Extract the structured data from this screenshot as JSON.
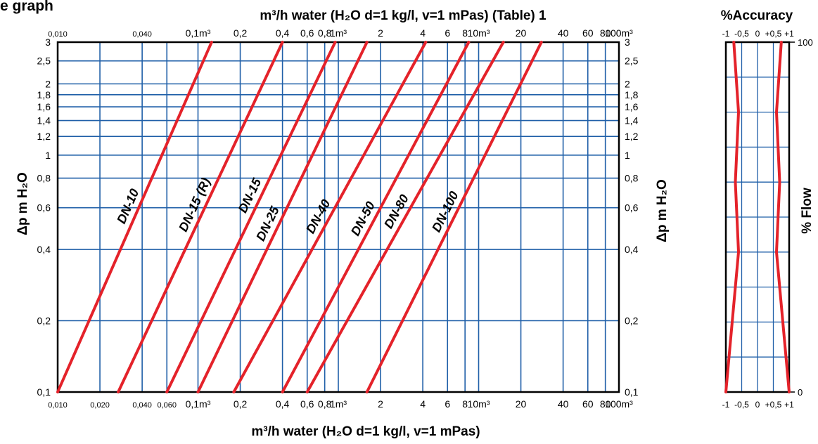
{
  "page_title_fragment": "e graph",
  "chart_data": [
    {
      "type": "line",
      "title": "m³/h water (H₂O  d=1  kg/l,  v=1 mPas) (Table) 1",
      "xlabel": "m³/h water (H₂O  d=1  kg/l,  v=1 mPas)",
      "ylabel": "Δp m H₂O",
      "x_scale": "log",
      "y_scale": "log",
      "xlim": [
        0.01,
        100
      ],
      "ylim": [
        0.1,
        3
      ],
      "grid": true,
      "x_ticks_top": [
        "0,010",
        "0,040",
        "0,1m³",
        "0,2",
        "0,4",
        "0,6",
        "0,8",
        "1m³",
        "2",
        "4",
        "6",
        "8",
        "10m³",
        "20",
        "40",
        "60",
        "80",
        "100m³"
      ],
      "x_ticks_bottom": [
        "0,010",
        "0,020",
        "0,040",
        "0,060",
        "0,1m³",
        "0,2",
        "0,4",
        "0,6",
        "0,8",
        "1m³",
        "2",
        "4",
        "6",
        "8",
        "10m³",
        "20",
        "40",
        "60",
        "80",
        "100m³"
      ],
      "y_ticks": [
        "0,1",
        "0,2",
        "0,4",
        "0,6",
        "0,8",
        "1",
        "1,2",
        "1,4",
        "1,6",
        "1,8",
        "2",
        "2,5",
        "3"
      ],
      "series": [
        {
          "name": "DN-10",
          "x": [
            0.01,
            0.125
          ],
          "y": [
            0.1,
            3
          ]
        },
        {
          "name": "DN-15 (R)",
          "x": [
            0.027,
            0.4
          ],
          "y": [
            0.1,
            3
          ]
        },
        {
          "name": "DN-15",
          "x": [
            0.06,
            0.95
          ],
          "y": [
            0.1,
            3
          ]
        },
        {
          "name": "DN-25",
          "x": [
            0.1,
            1.6
          ],
          "y": [
            0.1,
            3
          ]
        },
        {
          "name": "DN-40",
          "x": [
            0.18,
            4.2
          ],
          "y": [
            0.1,
            3
          ]
        },
        {
          "name": "DN-50",
          "x": [
            0.4,
            8.5
          ],
          "y": [
            0.1,
            3
          ]
        },
        {
          "name": "DN-80",
          "x": [
            0.6,
            15
          ],
          "y": [
            0.1,
            3
          ]
        },
        {
          "name": "DN-100",
          "x": [
            1.6,
            28
          ],
          "y": [
            0.1,
            3
          ]
        }
      ],
      "line_color": "#e4222a",
      "grid_color": "#1f5fa8"
    },
    {
      "type": "line",
      "title": "%Accuracy",
      "ylabel": "% Flow",
      "xlim": [
        -1,
        1
      ],
      "ylim": [
        0,
        100
      ],
      "x_ticks": [
        "-1",
        "-0,5",
        "0",
        "+0,5",
        "+1"
      ],
      "y_ticks": [
        "0",
        "100"
      ],
      "series": [
        {
          "name": "",
          "x": [
            -1,
            -0.6,
            -0.7,
            -0.6,
            -0.75
          ],
          "y": [
            0,
            40,
            60,
            80,
            100
          ]
        },
        {
          "name": "",
          "x": [
            1,
            0.6,
            0.7,
            0.6,
            0.75
          ],
          "y": [
            0,
            40,
            60,
            80,
            100
          ]
        }
      ]
    }
  ]
}
